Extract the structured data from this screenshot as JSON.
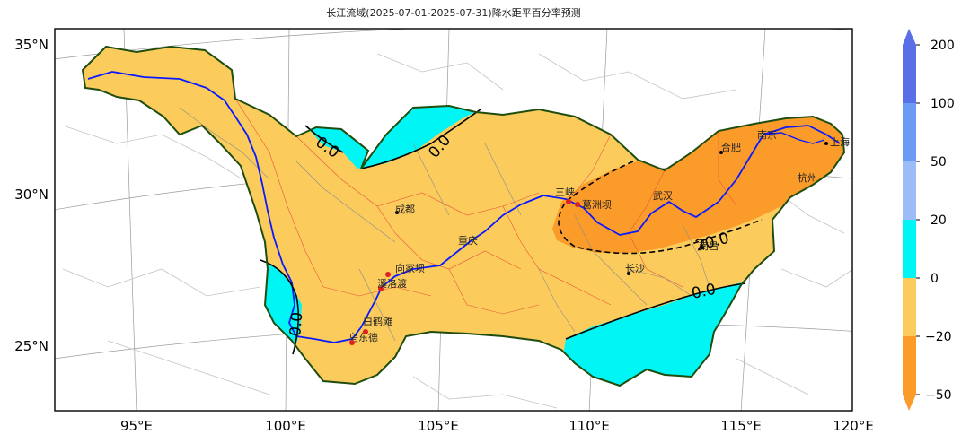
{
  "title": "长江流域(2025-07-01-2025-07-31)降水距平百分率预测",
  "axes": {
    "lon_ticks": [
      "95°E",
      "100°E",
      "105°E",
      "110°E",
      "115°E",
      "120°E"
    ],
    "lat_ticks": [
      "35°N",
      "30°N",
      "25°N"
    ]
  },
  "colorbar": {
    "ticks": [
      "200",
      "100",
      "50",
      "20",
      "0",
      "−20",
      "−50"
    ],
    "bands": [
      {
        "range": "100~200",
        "color": "#5a6ee8"
      },
      {
        "range": "50~100",
        "color": "#6a9cf5"
      },
      {
        "range": "20~50",
        "color": "#9cbcf7"
      },
      {
        "range": "0~20",
        "color": "#00f5f5"
      },
      {
        "range": "-20~0",
        "color": "#fbcb5c"
      },
      {
        "range": "-50~-20",
        "color": "#fb9c2a"
      }
    ],
    "extend_max_color": "#5a6ee8",
    "extend_min_color": "#fb9c2a"
  },
  "contour_labels": [
    "0.0",
    "0.0",
    "0.0",
    "20.0",
    "0.0"
  ],
  "cities": [
    {
      "name": "成都"
    },
    {
      "name": "三峡"
    },
    {
      "name": "葛洲坝"
    },
    {
      "name": "武汉"
    },
    {
      "name": "合肥"
    },
    {
      "name": "南京"
    },
    {
      "name": "杭州"
    },
    {
      "name": "上海"
    },
    {
      "name": "南昌"
    },
    {
      "name": "长沙"
    },
    {
      "name": "重庆"
    },
    {
      "name": "向家坝"
    },
    {
      "name": "溪洛渡"
    },
    {
      "name": "白鹤滩"
    },
    {
      "name": "乌东德"
    }
  ]
}
